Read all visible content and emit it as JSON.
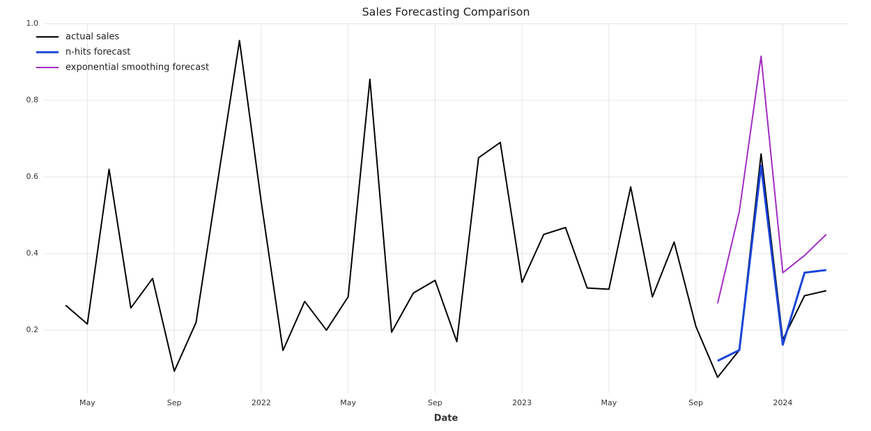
{
  "chart_data": {
    "type": "line",
    "title": "Sales Forecasting Comparison",
    "xlabel": "Date",
    "x": [
      "2021-04",
      "2021-05",
      "2021-06",
      "2021-07",
      "2021-08",
      "2021-09",
      "2021-10",
      "2021-11",
      "2021-12",
      "2022-01",
      "2022-02",
      "2022-03",
      "2022-04",
      "2022-05",
      "2022-06",
      "2022-07",
      "2022-08",
      "2022-09",
      "2022-10",
      "2022-11",
      "2022-12",
      "2023-01",
      "2023-02",
      "2023-03",
      "2023-04",
      "2023-05",
      "2023-06",
      "2023-07",
      "2023-08",
      "2023-09",
      "2023-10",
      "2023-11",
      "2023-12",
      "2024-01",
      "2024-02",
      "2024-03"
    ],
    "series": [
      {
        "name": "actual sales",
        "color": "#000000",
        "width": 2,
        "values": [
          0.265,
          0.216,
          0.62,
          0.258,
          0.335,
          0.093,
          0.22,
          0.59,
          0.956,
          0.535,
          0.147,
          0.275,
          0.2,
          0.287,
          0.855,
          0.195,
          0.297,
          0.33,
          0.17,
          0.65,
          0.69,
          0.325,
          0.45,
          0.468,
          0.31,
          0.307,
          0.574,
          0.287,
          0.43,
          0.21,
          0.077,
          0.148,
          0.66,
          0.175,
          0.29,
          0.303
        ]
      },
      {
        "name": "n-hits forecast",
        "color": "#1a45d6",
        "width": 3,
        "values": [
          null,
          null,
          null,
          null,
          null,
          null,
          null,
          null,
          null,
          null,
          null,
          null,
          null,
          null,
          null,
          null,
          null,
          null,
          null,
          null,
          null,
          null,
          null,
          null,
          null,
          null,
          null,
          null,
          null,
          null,
          0.12,
          0.148,
          0.63,
          0.162,
          0.35,
          0.357
        ]
      },
      {
        "name": "exponential smoothing forecast",
        "color": "#a32cc4",
        "width": 2,
        "values": [
          null,
          null,
          null,
          null,
          null,
          null,
          null,
          null,
          null,
          null,
          null,
          null,
          null,
          null,
          null,
          null,
          null,
          null,
          null,
          null,
          null,
          null,
          null,
          null,
          null,
          null,
          null,
          null,
          null,
          null,
          0.27,
          0.51,
          0.915,
          0.35,
          0.395,
          0.45
        ]
      }
    ],
    "xlim": [
      "2021-03",
      "2024-04"
    ],
    "xticks": [
      {
        "value": "2021-05",
        "label": "May"
      },
      {
        "value": "2021-09",
        "label": "Sep"
      },
      {
        "value": "2022-01",
        "label": "2022"
      },
      {
        "value": "2022-05",
        "label": "May"
      },
      {
        "value": "2022-09",
        "label": "Sep"
      },
      {
        "value": "2023-01",
        "label": "2023"
      },
      {
        "value": "2023-05",
        "label": "May"
      },
      {
        "value": "2023-09",
        "label": "Sep"
      },
      {
        "value": "2024-01",
        "label": "2024"
      }
    ],
    "ylim": [
      0.035,
      1.0
    ],
    "yticks": [
      0.2,
      0.4,
      0.6,
      0.8,
      {
        "value": 1,
        "label": "1.0"
      }
    ],
    "grid": true,
    "legend": "upper left"
  }
}
